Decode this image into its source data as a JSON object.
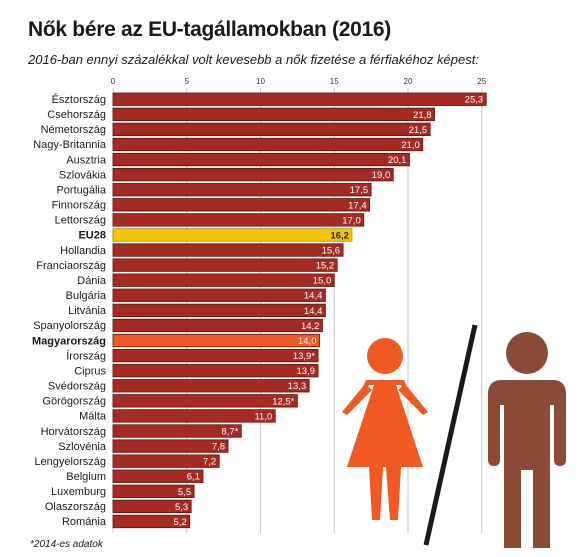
{
  "title": "Nők bére az EU-tagállamokban (2016)",
  "subtitle": "2016-ban ennyi százalékkal volt kevesebb a nők fizetése a férfiakéhoz képest:",
  "footnote": "*2014-es adatok",
  "colors": {
    "bar": "#a52a22",
    "bar_eu": "#f5c400",
    "bar_hu": "#ee5a24",
    "woman_icon": "#f05a22",
    "man_icon": "#8b4a34",
    "grid": "#c8c8c8"
  },
  "icons": [
    "woman-icon",
    "man-icon"
  ],
  "chart_data": {
    "type": "bar",
    "orientation": "horizontal",
    "title": "Nők bére az EU-tagállamokban (2016)",
    "subtitle": "2016-ban ennyi százalékkal volt kevesebb a nők fizetése a férfiakéhoz képest:",
    "xlim": [
      0,
      25.5
    ],
    "xticks": [
      "0",
      "5",
      "10",
      "15",
      "20",
      "25"
    ],
    "xtick_values": [
      0,
      5,
      10,
      15,
      20,
      25
    ],
    "grid": true,
    "categories": [
      "Észtország",
      "Csehország",
      "Németország",
      "Nagy-Britannia",
      "Ausztria",
      "Szlovákia",
      "Portugália",
      "Finnország",
      "Lettország",
      "EU28",
      "Hollandia",
      "Franciaország",
      "Dánia",
      "Bulgária",
      "Litvánia",
      "Spanyolország",
      "Magyarország",
      "Írország",
      "Ciprus",
      "Svédország",
      "Görögország",
      "Málta",
      "Horvátország",
      "Szlovénia",
      "Lengyelország",
      "Belgium",
      "Luxemburg",
      "Olaszország",
      "Románia"
    ],
    "values": [
      25.3,
      21.8,
      21.5,
      21.0,
      20.1,
      19.0,
      17.5,
      17.4,
      17.0,
      16.2,
      15.6,
      15.2,
      15.0,
      14.4,
      14.4,
      14.2,
      14.0,
      13.9,
      13.9,
      13.3,
      12.5,
      11.0,
      8.7,
      7.8,
      7.2,
      6.1,
      5.5,
      5.3,
      5.2
    ],
    "labels": [
      "25,3",
      "21,8",
      "21,5",
      "21,0",
      "20,1",
      "19,0",
      "17,5",
      "17,4",
      "17,0",
      "16,2",
      "15,6",
      "15,2",
      "15,0",
      "14,4",
      "14,4",
      "14,2",
      "14,0",
      "13,9*",
      "13,9",
      "13,3",
      "12,5*",
      "11,0",
      "8,7*",
      "7,8",
      "7,2",
      "6,1",
      "5,5",
      "5,3",
      "5,2"
    ],
    "highlight": {
      "EU28": "eu",
      "Magyarország": "hu"
    }
  }
}
